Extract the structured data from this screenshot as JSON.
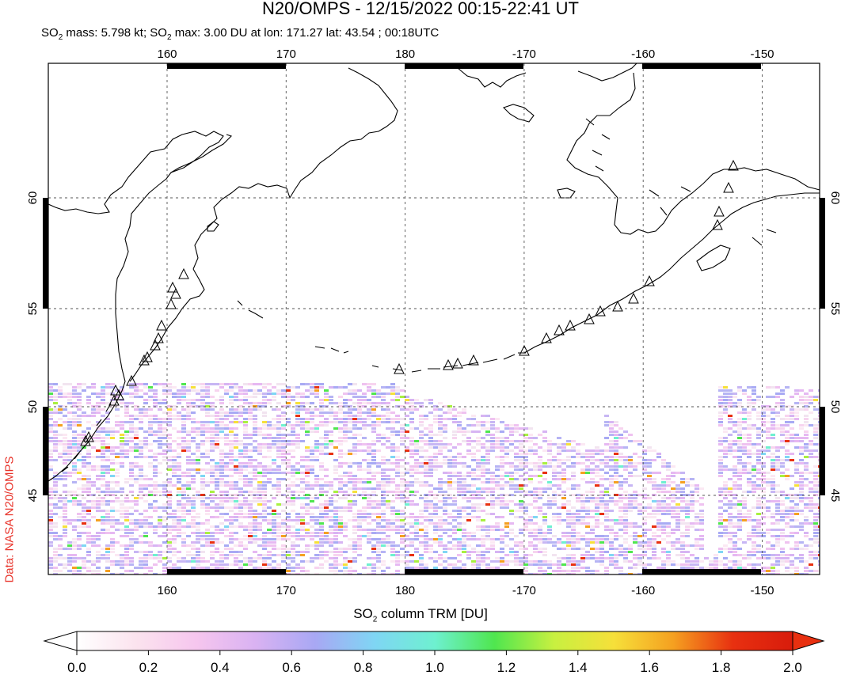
{
  "title": "N20/OMPS - 12/15/2022 00:15-22:41 UT",
  "subtitle": {
    "mass_prefix": "SO",
    "mass_sub": "2",
    "mass_text": " mass: 5.798 kt; SO",
    "max_sub": "2",
    "max_text": " max: 3.00 DU at lon: 171.27 lat: 43.54 ; 00:18UTC"
  },
  "credit": "Data: NASA N20/OMPS",
  "axes": {
    "lon_labels": [
      "160",
      "170",
      "180",
      "-170",
      "-160",
      "-150"
    ],
    "lon_values": [
      160,
      170,
      180,
      190,
      200,
      210
    ],
    "lat_labels": [
      "60",
      "55",
      "50",
      "45"
    ],
    "lat_values": [
      60,
      55,
      50,
      45
    ]
  },
  "colorbar": {
    "title_prefix": "SO",
    "title_sub": "2",
    "title_suffix": " column TRM [DU]",
    "ticks": [
      "0.0",
      "0.2",
      "0.4",
      "0.6",
      "0.8",
      "1.0",
      "1.2",
      "1.4",
      "1.6",
      "1.8",
      "2.0"
    ],
    "colors": [
      "#ffffff",
      "#fbe3ee",
      "#f6c6ee",
      "#d9b2f2",
      "#a8a8f4",
      "#7fd6f4",
      "#6ef0d0",
      "#4fe64f",
      "#c8f040",
      "#f6e03a",
      "#f5a020",
      "#e83010",
      "#d81c0c"
    ]
  },
  "colors": {
    "land_outline": "#000000",
    "grid": "#666666",
    "volcano_marker": "#000000"
  }
}
